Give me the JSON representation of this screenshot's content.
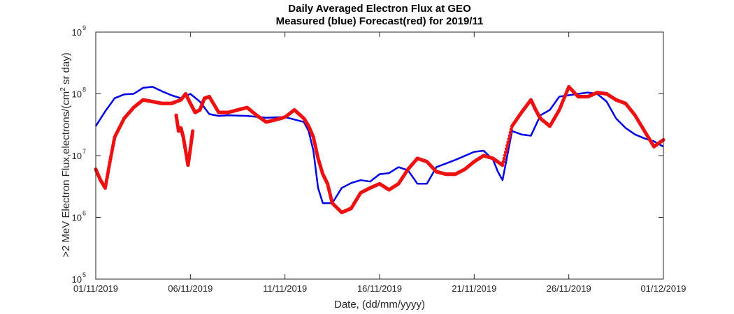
{
  "chart_data": {
    "type": "line",
    "title": "Daily Averaged Electron Flux at GEO",
    "subtitle": "Measured (blue) Forecast(red) for 2019/11",
    "xlabel": "Date, (dd/mm/yyyy)",
    "ylabel": {
      "prefix": ">2 MeV Electron Flux,electrons/(cm",
      "sup": "2",
      "suffix": " sr day)"
    },
    "y_scale": "log",
    "ylim": [
      100000,
      1000000000
    ],
    "y_ticks": [
      {
        "value": 100000,
        "base": "10",
        "exp": "5"
      },
      {
        "value": 1000000,
        "base": "10",
        "exp": "6"
      },
      {
        "value": 10000000,
        "base": "10",
        "exp": "7"
      },
      {
        "value": 100000000,
        "base": "10",
        "exp": "8"
      },
      {
        "value": 1000000000,
        "base": "10",
        "exp": "9"
      }
    ],
    "xlim": [
      "2019-11-01",
      "2019-12-01"
    ],
    "x_ticks": [
      {
        "date": "2019-11-01",
        "label": "01/11/2019"
      },
      {
        "date": "2019-11-06",
        "label": "06/11/2019"
      },
      {
        "date": "2019-11-11",
        "label": "11/11/2019"
      },
      {
        "date": "2019-11-16",
        "label": "16/11/2019"
      },
      {
        "date": "2019-11-21",
        "label": "21/11/2019"
      },
      {
        "date": "2019-11-26",
        "label": "26/11/2019"
      },
      {
        "date": "2019-12-01",
        "label": "01/12/2019"
      }
    ],
    "grid": false,
    "series": [
      {
        "style": "line",
        "color": "#0000e6",
        "x": [
          "2019-11-01 00:00",
          "2019-11-01 12:00",
          "2019-11-02 00:00",
          "2019-11-02 12:00",
          "2019-11-03 00:00",
          "2019-11-03 12:00",
          "2019-11-04 00:00",
          "2019-11-04 12:00",
          "2019-11-05 00:00",
          "2019-11-05 12:00",
          "2019-11-06 00:00",
          "2019-11-06 12:00",
          "2019-11-07 00:00",
          "2019-11-07 12:00",
          "2019-11-08 00:00",
          "2019-11-09 00:00",
          "2019-11-10 00:00",
          "2019-11-11 00:00",
          "2019-11-12 00:00",
          "2019-11-12 06:00",
          "2019-11-12 12:00",
          "2019-11-12 18:00",
          "2019-11-13 00:00",
          "2019-11-13 12:00",
          "2019-11-14 00:00",
          "2019-11-14 12:00",
          "2019-11-15 00:00",
          "2019-11-15 12:00",
          "2019-11-16 00:00",
          "2019-11-16 12:00",
          "2019-11-17 00:00",
          "2019-11-17 12:00",
          "2019-11-18 00:00",
          "2019-11-18 12:00",
          "2019-11-19 00:00",
          "2019-11-20 00:00",
          "2019-11-21 00:00",
          "2019-11-21 12:00",
          "2019-11-22 00:00",
          "2019-11-22 06:00",
          "2019-11-22 12:00",
          "2019-11-23 00:00",
          "2019-11-23 12:00",
          "2019-11-24 00:00",
          "2019-11-24 12:00",
          "2019-11-25 00:00",
          "2019-11-25 12:00",
          "2019-11-26 00:00",
          "2019-11-26 12:00",
          "2019-11-27 00:00",
          "2019-11-27 12:00",
          "2019-11-28 00:00",
          "2019-11-28 12:00",
          "2019-11-29 00:00",
          "2019-11-29 12:00",
          "2019-11-30 00:00",
          "2019-11-30 12:00",
          "2019-12-01 00:00"
        ],
        "y": [
          30000000,
          52000000,
          85000000,
          98000000,
          100000000,
          125000000,
          130000000,
          110000000,
          95000000,
          85000000,
          100000000,
          75000000,
          47000000,
          44000000,
          45000000,
          44000000,
          41000000,
          42000000,
          35000000,
          25000000,
          12000000,
          3000000,
          1700000,
          1700000,
          3000000,
          3600000,
          4000000,
          3800000,
          5000000,
          5200000,
          6500000,
          5800000,
          3500000,
          3500000,
          6500000,
          8500000,
          11500000,
          12000000,
          8500000,
          5500000,
          4000000,
          25000000,
          22000000,
          21000000,
          45000000,
          55000000,
          90000000,
          95000000,
          100000000,
          105000000,
          100000000,
          75000000,
          40000000,
          28000000,
          22000000,
          19000000,
          17000000,
          14000000
        ]
      },
      {
        "style": "markers",
        "color": "#ee1111",
        "segments": [
          {
            "x": [
              "2019-11-01 00:00",
              "2019-11-01 06:00",
              "2019-11-01 12:00",
              "2019-11-01 18:00",
              "2019-11-02 00:00",
              "2019-11-02 12:00",
              "2019-11-03 00:00",
              "2019-11-03 12:00",
              "2019-11-04 00:00",
              "2019-11-04 12:00",
              "2019-11-05 00:00",
              "2019-11-05 12:00",
              "2019-11-05 18:00",
              "2019-11-06 00:00",
              "2019-11-06 06:00",
              "2019-11-06 12:00",
              "2019-11-06 18:00",
              "2019-11-07 00:00",
              "2019-11-07 12:00",
              "2019-11-08 00:00",
              "2019-11-08 12:00",
              "2019-11-09 00:00",
              "2019-11-09 12:00",
              "2019-11-10 00:00",
              "2019-11-10 12:00",
              "2019-11-11 00:00",
              "2019-11-11 12:00",
              "2019-11-12 00:00",
              "2019-11-12 06:00",
              "2019-11-12 12:00",
              "2019-11-12 18:00",
              "2019-11-13 00:00",
              "2019-11-13 06:00",
              "2019-11-13 12:00",
              "2019-11-14 00:00",
              "2019-11-14 12:00",
              "2019-11-15 00:00",
              "2019-11-15 12:00",
              "2019-11-16 00:00",
              "2019-11-16 12:00",
              "2019-11-17 00:00",
              "2019-11-17 12:00",
              "2019-11-18 00:00",
              "2019-11-18 12:00",
              "2019-11-19 00:00",
              "2019-11-19 12:00",
              "2019-11-20 00:00",
              "2019-11-20 12:00",
              "2019-11-21 00:00",
              "2019-11-21 12:00",
              "2019-11-22 00:00",
              "2019-11-22 12:00",
              "2019-11-23 00:00",
              "2019-11-23 12:00",
              "2019-11-24 00:00",
              "2019-11-24 06:00",
              "2019-11-24 12:00",
              "2019-11-25 00:00",
              "2019-11-25 12:00",
              "2019-11-26 00:00",
              "2019-11-26 12:00",
              "2019-11-27 00:00",
              "2019-11-27 12:00",
              "2019-11-28 00:00",
              "2019-11-28 12:00",
              "2019-11-29 00:00",
              "2019-11-29 12:00",
              "2019-11-30 00:00",
              "2019-11-30 12:00",
              "2019-12-01 00:00"
            ],
            "y": [
              6000000,
              4000000,
              3000000,
              8000000,
              20000000,
              40000000,
              60000000,
              80000000,
              75000000,
              70000000,
              70000000,
              80000000,
              100000000,
              70000000,
              50000000,
              55000000,
              85000000,
              90000000,
              50000000,
              50000000,
              55000000,
              60000000,
              45000000,
              35000000,
              38000000,
              42000000,
              55000000,
              40000000,
              30000000,
              20000000,
              9000000,
              5000000,
              3500000,
              1700000,
              1200000,
              1400000,
              2500000,
              3000000,
              3500000,
              2800000,
              3500000,
              6000000,
              9000000,
              8000000,
              5500000,
              5000000,
              5000000,
              6000000,
              8000000,
              10000000,
              9000000,
              7000000,
              30000000,
              50000000,
              80000000,
              55000000,
              40000000,
              30000000,
              55000000,
              130000000,
              90000000,
              90000000,
              105000000,
              100000000,
              80000000,
              70000000,
              45000000,
              25000000,
              14000000,
              18000000
            ]
          },
          {
            "x": [
              "2019-11-05 06:00",
              "2019-11-05 09:00",
              "2019-11-05 12:00",
              "2019-11-05 15:00",
              "2019-11-05 18:00",
              "2019-11-05 21:00",
              "2019-11-06 00:00",
              "2019-11-06 03:00"
            ],
            "y": [
              45000000,
              25000000,
              28000000,
              20000000,
              12000000,
              7000000,
              13000000,
              25000000
            ]
          }
        ]
      }
    ]
  }
}
